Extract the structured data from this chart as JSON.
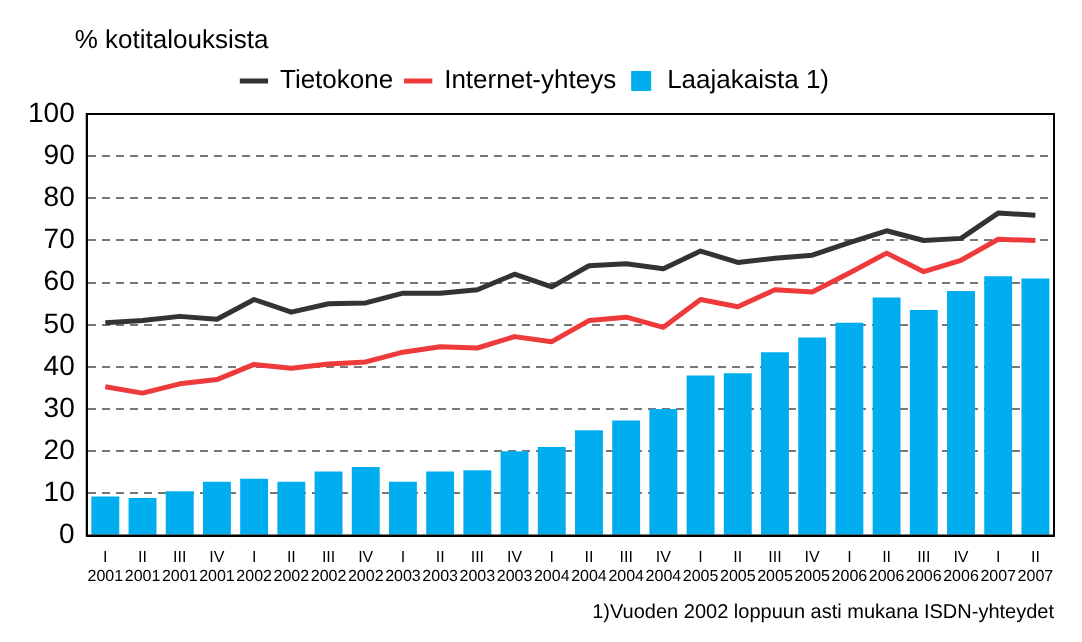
{
  "chart_data": {
    "type": "bar",
    "ylabel": "% kotitalouksista",
    "categories": [
      "I\n2001",
      "II\n2001",
      "III\n2001",
      "IV\n2001",
      "I\n2002",
      "II\n2002",
      "III\n2002",
      "IV\n2002",
      "I\n2003",
      "II\n2003",
      "III\n2003",
      "IV\n2003",
      "I\n2004",
      "II\n2004",
      "III\n2004",
      "IV\n2004",
      "I\n2005",
      "II\n2005",
      "III\n2005",
      "IV\n2005",
      "I\n2006",
      "II\n2006",
      "III\n2006",
      "IV\n2006",
      "I\n2007",
      "II\n2007"
    ],
    "series": [
      {
        "name": "Tietokone",
        "type": "line",
        "color": "#333333",
        "values": [
          50.5,
          51,
          52,
          51.3,
          56,
          53,
          55,
          55.2,
          57.5,
          57.5,
          58.3,
          62,
          59,
          64,
          64.5,
          63.3,
          67.5,
          64.8,
          65.8,
          66.5,
          69.5,
          72.3,
          70,
          70.5,
          76.5,
          76
        ]
      },
      {
        "name": "Internet-yhteys",
        "type": "line",
        "color": "#ee3a3a",
        "values": [
          35.3,
          33.8,
          36,
          37,
          40.6,
          39.7,
          40.7,
          41.2,
          43.5,
          44.8,
          44.5,
          47.2,
          46,
          51,
          51.8,
          49.4,
          56,
          54.3,
          58.3,
          57.8,
          62.3,
          67,
          62.6,
          65.3,
          70.3,
          70
        ]
      },
      {
        "name": "Laajakaista 1)",
        "color": "#00aeef",
        "values": [
          9.3,
          8.9,
          10.5,
          12.8,
          13.5,
          12.8,
          15.2,
          16.3,
          12.8,
          15.2,
          15.5,
          20,
          21,
          25,
          27.3,
          30,
          38,
          38.5,
          43.5,
          47,
          50.5,
          56.5,
          53.5,
          58,
          61.5,
          61
        ]
      }
    ],
    "ylim": [
      0,
      100
    ],
    "yticks": [
      0,
      10,
      20,
      30,
      40,
      50,
      60,
      70,
      80,
      90,
      100
    ],
    "grid": "y",
    "legend": "top",
    "marker": "none",
    "annotations": [
      "1)Vuoden 2002 loppuun asti mukana ISDN-yhteydet"
    ]
  }
}
